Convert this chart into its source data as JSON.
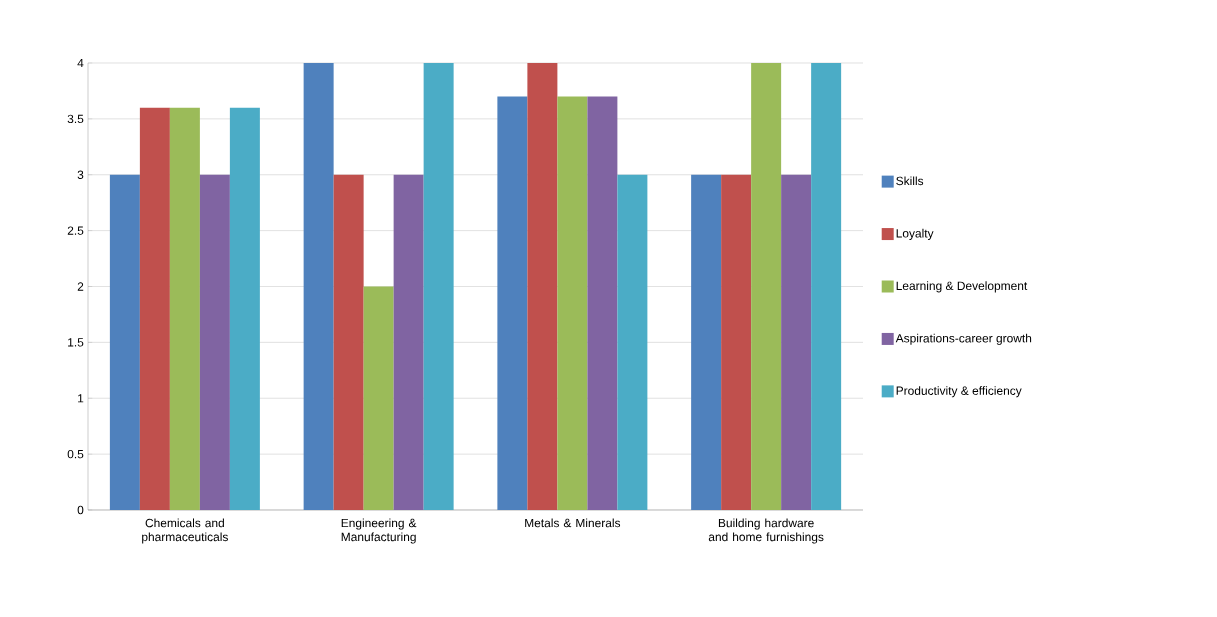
{
  "chart_data": {
    "type": "bar",
    "categories": [
      "Chemicals and pharmaceuticals",
      "Engineering & Manufacturing",
      "Metals & Minerals",
      "Building hardware and home furnishings"
    ],
    "series": [
      {
        "name": "Skills",
        "color": "#4f81bd",
        "values": [
          3,
          4,
          3.7,
          3
        ]
      },
      {
        "name": "Loyalty",
        "color": "#c0504d",
        "values": [
          3.6,
          3,
          4,
          3
        ]
      },
      {
        "name": "Learning & Development",
        "color": "#9bbb59",
        "values": [
          3.6,
          2,
          3.7,
          4
        ]
      },
      {
        "name": "Aspirations-career growth",
        "color": "#8064a2",
        "values": [
          3,
          3,
          3.7,
          3
        ]
      },
      {
        "name": "Productivity & efficiency",
        "color": "#4bacc6",
        "values": [
          3.6,
          4,
          3,
          4
        ]
      }
    ],
    "ylim": [
      0,
      4
    ],
    "yticks": [
      0,
      0.5,
      1,
      1.5,
      2,
      2.5,
      3,
      3.5,
      4
    ],
    "grid": "y",
    "legend": "right"
  }
}
